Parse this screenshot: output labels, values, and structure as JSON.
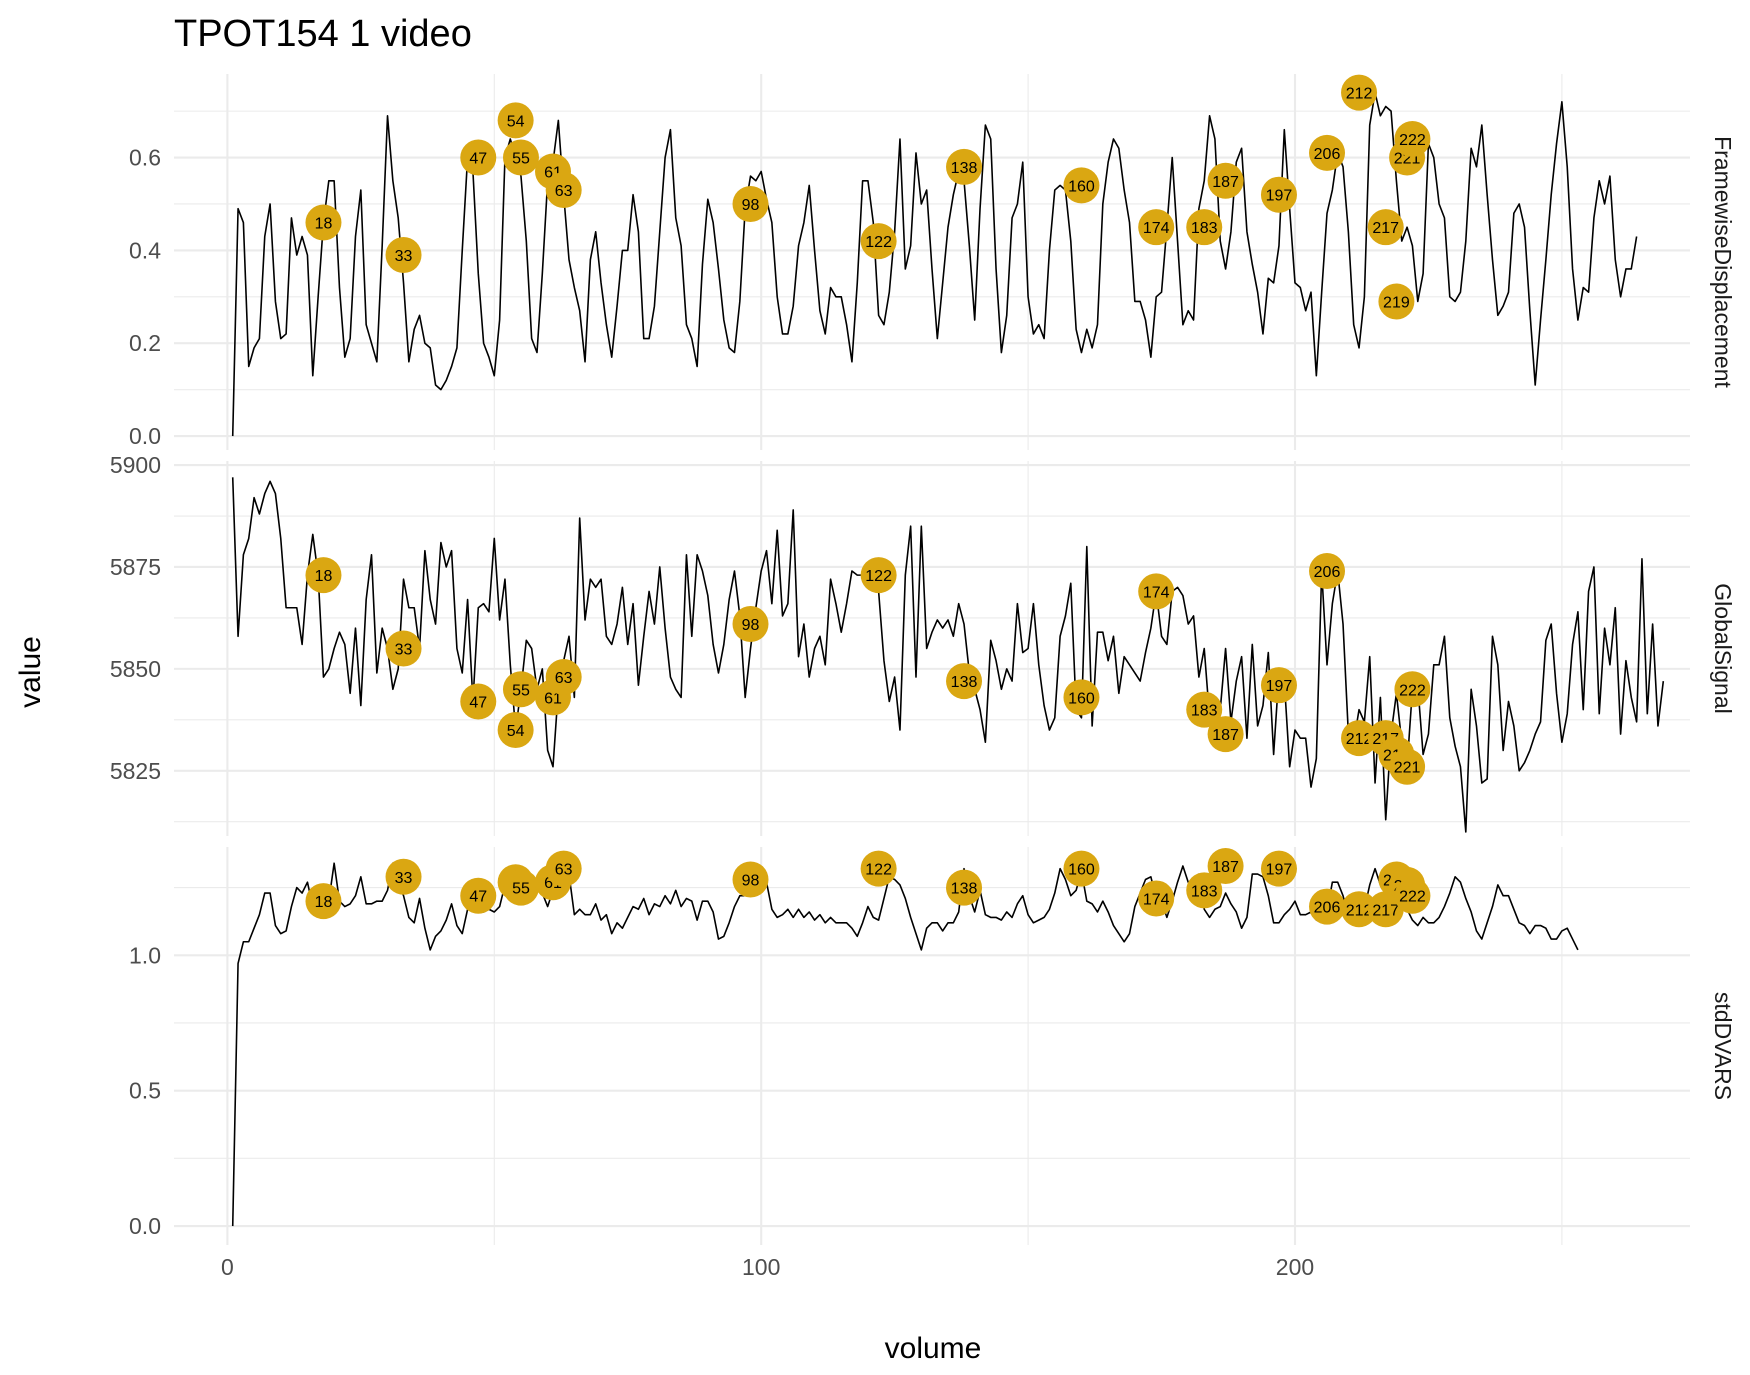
{
  "chart_data": {
    "type": "line",
    "title": "TPOT154  1  video",
    "xlabel": "volume",
    "ylabel": "value",
    "xlim": [
      -10,
      274
    ],
    "x_ticks": [
      0,
      100,
      200
    ],
    "highlight_color": "#DAA712",
    "line_color": "#000000",
    "facets": [
      {
        "name": "FramewiseDisplacement",
        "ylim": [
          -0.03,
          0.78
        ],
        "y_ticks": [
          0.0,
          0.2,
          0.4,
          0.6
        ],
        "y_tick_labels": [
          "0.0",
          "0.2",
          "0.4",
          "0.6"
        ],
        "values": [
          0.0,
          0.49,
          0.46,
          0.15,
          0.19,
          0.21,
          0.43,
          0.5,
          0.29,
          0.21,
          0.22,
          0.47,
          0.39,
          0.43,
          0.39,
          0.13,
          0.3,
          0.46,
          0.55,
          0.55,
          0.32,
          0.17,
          0.21,
          0.43,
          0.53,
          0.24,
          0.2,
          0.16,
          0.41,
          0.69,
          0.55,
          0.47,
          0.33,
          0.16,
          0.23,
          0.26,
          0.2,
          0.19,
          0.11,
          0.1,
          0.12,
          0.15,
          0.19,
          0.4,
          0.6,
          0.57,
          0.35,
          0.2,
          0.17,
          0.13,
          0.25,
          0.6,
          0.64,
          0.6,
          0.56,
          0.42,
          0.21,
          0.18,
          0.35,
          0.55,
          0.59,
          0.68,
          0.52,
          0.38,
          0.32,
          0.27,
          0.16,
          0.38,
          0.44,
          0.33,
          0.24,
          0.17,
          0.28,
          0.4,
          0.4,
          0.52,
          0.44,
          0.21,
          0.21,
          0.28,
          0.44,
          0.6,
          0.66,
          0.47,
          0.41,
          0.24,
          0.21,
          0.15,
          0.37,
          0.51,
          0.46,
          0.36,
          0.25,
          0.19,
          0.18,
          0.29,
          0.49,
          0.56,
          0.55,
          0.57,
          0.51,
          0.46,
          0.3,
          0.22,
          0.22,
          0.28,
          0.41,
          0.46,
          0.54,
          0.4,
          0.27,
          0.22,
          0.32,
          0.3,
          0.3,
          0.24,
          0.16,
          0.33,
          0.55,
          0.55,
          0.46,
          0.26,
          0.24,
          0.31,
          0.44,
          0.64,
          0.36,
          0.41,
          0.61,
          0.5,
          0.53,
          0.36,
          0.21,
          0.33,
          0.45,
          0.52,
          0.57,
          0.55,
          0.41,
          0.25,
          0.49,
          0.67,
          0.64,
          0.36,
          0.18,
          0.26,
          0.47,
          0.5,
          0.59,
          0.3,
          0.22,
          0.24,
          0.21,
          0.4,
          0.53,
          0.54,
          0.53,
          0.42,
          0.23,
          0.18,
          0.23,
          0.19,
          0.24,
          0.5,
          0.59,
          0.64,
          0.62,
          0.53,
          0.46,
          0.29,
          0.29,
          0.25,
          0.17,
          0.3,
          0.31,
          0.45,
          0.6,
          0.42,
          0.24,
          0.27,
          0.25,
          0.49,
          0.55,
          0.69,
          0.64,
          0.42,
          0.36,
          0.44,
          0.59,
          0.62,
          0.44,
          0.37,
          0.31,
          0.22,
          0.34,
          0.33,
          0.41,
          0.66,
          0.49,
          0.33,
          0.32,
          0.27,
          0.31,
          0.13,
          0.31,
          0.48,
          0.53,
          0.61,
          0.58,
          0.44,
          0.24,
          0.19,
          0.3,
          0.67,
          0.74,
          0.69,
          0.71,
          0.7,
          0.55,
          0.42,
          0.45,
          0.41,
          0.29,
          0.35,
          0.63,
          0.6,
          0.5,
          0.47,
          0.3,
          0.29,
          0.31,
          0.42,
          0.62,
          0.58,
          0.67,
          0.52,
          0.38,
          0.26,
          0.28,
          0.31,
          0.48,
          0.5,
          0.45,
          0.27,
          0.11,
          0.25,
          0.38,
          0.52,
          0.63,
          0.72,
          0.58,
          0.36,
          0.25,
          0.32,
          0.31,
          0.47,
          0.55,
          0.5,
          0.56,
          0.38,
          0.3,
          0.36,
          0.36,
          0.43
        ],
        "highlights": [
          {
            "label": "18",
            "x": 18,
            "y": 0.46
          },
          {
            "label": "33",
            "x": 33,
            "y": 0.39
          },
          {
            "label": "47",
            "x": 47,
            "y": 0.6
          },
          {
            "label": "54",
            "x": 54,
            "y": 0.68
          },
          {
            "label": "55",
            "x": 55,
            "y": 0.6
          },
          {
            "label": "61",
            "x": 61,
            "y": 0.57
          },
          {
            "label": "63",
            "x": 63,
            "y": 0.53
          },
          {
            "label": "98",
            "x": 98,
            "y": 0.5
          },
          {
            "label": "122",
            "x": 122,
            "y": 0.42
          },
          {
            "label": "138",
            "x": 138,
            "y": 0.58
          },
          {
            "label": "160",
            "x": 160,
            "y": 0.54
          },
          {
            "label": "174",
            "x": 174,
            "y": 0.45
          },
          {
            "label": "183",
            "x": 183,
            "y": 0.45
          },
          {
            "label": "187",
            "x": 187,
            "y": 0.55
          },
          {
            "label": "197",
            "x": 197,
            "y": 0.52
          },
          {
            "label": "206",
            "x": 206,
            "y": 0.61
          },
          {
            "label": "212",
            "x": 212,
            "y": 0.74
          },
          {
            "label": "217",
            "x": 217,
            "y": 0.45
          },
          {
            "label": "219",
            "x": 219,
            "y": 0.29
          },
          {
            "label": "221",
            "x": 221,
            "y": 0.6
          },
          {
            "label": "222",
            "x": 222,
            "y": 0.64
          }
        ]
      },
      {
        "name": "GlobalSignal",
        "ylim": [
          5809,
          5901
        ],
        "y_ticks": [
          5825,
          5850,
          5875,
          5900
        ],
        "y_tick_labels": [
          "5825",
          "5850",
          "5875",
          "5900"
        ],
        "values": [
          5897,
          5858,
          5878,
          5882,
          5892,
          5888,
          5893,
          5896,
          5893,
          5882,
          5865,
          5865,
          5865,
          5856,
          5873,
          5883,
          5873,
          5848,
          5850,
          5855,
          5859,
          5856,
          5844,
          5860,
          5841,
          5867,
          5878,
          5849,
          5860,
          5855,
          5845,
          5850,
          5872,
          5865,
          5865,
          5855,
          5879,
          5867,
          5861,
          5881,
          5875,
          5879,
          5855,
          5849,
          5867,
          5842,
          5865,
          5866,
          5864,
          5882,
          5862,
          5872,
          5851,
          5835,
          5845,
          5857,
          5855,
          5845,
          5850,
          5830,
          5826,
          5845,
          5852,
          5858,
          5843,
          5887,
          5862,
          5872,
          5870,
          5872,
          5858,
          5856,
          5861,
          5870,
          5856,
          5866,
          5846,
          5858,
          5869,
          5861,
          5875,
          5860,
          5848,
          5845,
          5843,
          5878,
          5858,
          5878,
          5874,
          5868,
          5856,
          5849,
          5856,
          5867,
          5874,
          5863,
          5843,
          5855,
          5865,
          5874,
          5879,
          5866,
          5884,
          5863,
          5866,
          5889,
          5853,
          5861,
          5848,
          5855,
          5858,
          5851,
          5872,
          5866,
          5859,
          5866,
          5874,
          5873,
          5873,
          5874,
          5873,
          5869,
          5852,
          5842,
          5848,
          5835,
          5873,
          5885,
          5848,
          5885,
          5855,
          5859,
          5862,
          5860,
          5862,
          5858,
          5866,
          5861,
          5849,
          5845,
          5840,
          5832,
          5857,
          5852,
          5845,
          5850,
          5847,
          5866,
          5854,
          5855,
          5866,
          5851,
          5841,
          5835,
          5838,
          5858,
          5863,
          5871,
          5840,
          5838,
          5880,
          5836,
          5859,
          5859,
          5852,
          5858,
          5844,
          5853,
          5851,
          5849,
          5847,
          5854,
          5860,
          5869,
          5858,
          5856,
          5869,
          5870,
          5868,
          5861,
          5863,
          5848,
          5855,
          5838,
          5840,
          5840,
          5855,
          5837,
          5847,
          5853,
          5833,
          5856,
          5836,
          5841,
          5854,
          5829,
          5849,
          5847,
          5826,
          5835,
          5833,
          5833,
          5821,
          5828,
          5874,
          5851,
          5866,
          5874,
          5861,
          5834,
          5832,
          5840,
          5837,
          5853,
          5822,
          5843,
          5813,
          5834,
          5844,
          5832,
          5826,
          5845,
          5846,
          5829,
          5834,
          5851,
          5851,
          5858,
          5838,
          5831,
          5826,
          5810,
          5845,
          5836,
          5822,
          5823,
          5858,
          5851,
          5830,
          5842,
          5836,
          5825,
          5827,
          5830,
          5834,
          5837,
          5857,
          5861,
          5844,
          5832,
          5839,
          5856,
          5864,
          5840,
          5869,
          5875,
          5839,
          5860,
          5851,
          5865,
          5834,
          5852,
          5843,
          5837,
          5877,
          5839,
          5861,
          5836,
          5847
        ],
        "highlights": [
          {
            "label": "18",
            "x": 18,
            "y": 5873
          },
          {
            "label": "33",
            "x": 33,
            "y": 5855
          },
          {
            "label": "47",
            "x": 47,
            "y": 5842
          },
          {
            "label": "54",
            "x": 54,
            "y": 5835
          },
          {
            "label": "55",
            "x": 55,
            "y": 5845
          },
          {
            "label": "61",
            "x": 61,
            "y": 5843
          },
          {
            "label": "63",
            "x": 63,
            "y": 5848
          },
          {
            "label": "98",
            "x": 98,
            "y": 5861
          },
          {
            "label": "122",
            "x": 122,
            "y": 5873
          },
          {
            "label": "138",
            "x": 138,
            "y": 5847
          },
          {
            "label": "160",
            "x": 160,
            "y": 5843
          },
          {
            "label": "174",
            "x": 174,
            "y": 5869
          },
          {
            "label": "183",
            "x": 183,
            "y": 5840
          },
          {
            "label": "187",
            "x": 187,
            "y": 5834
          },
          {
            "label": "197",
            "x": 197,
            "y": 5846
          },
          {
            "label": "206",
            "x": 206,
            "y": 5874
          },
          {
            "label": "212",
            "x": 212,
            "y": 5833
          },
          {
            "label": "217",
            "x": 217,
            "y": 5833
          },
          {
            "label": "219",
            "x": 219,
            "y": 5829
          },
          {
            "label": "221",
            "x": 221,
            "y": 5826
          },
          {
            "label": "222",
            "x": 222,
            "y": 5845
          }
        ]
      },
      {
        "name": "stdDVARS",
        "ylim": [
          -0.07,
          1.4
        ],
        "y_ticks": [
          0.0,
          0.5,
          1.0
        ],
        "y_tick_labels": [
          "0.0",
          "0.5",
          "1.0"
        ],
        "values": [
          0.0,
          0.97,
          1.05,
          1.05,
          1.1,
          1.15,
          1.23,
          1.23,
          1.11,
          1.08,
          1.09,
          1.18,
          1.25,
          1.23,
          1.27,
          1.18,
          1.2,
          1.23,
          1.2,
          1.34,
          1.2,
          1.18,
          1.19,
          1.22,
          1.29,
          1.19,
          1.19,
          1.2,
          1.2,
          1.24,
          1.34,
          1.27,
          1.22,
          1.14,
          1.12,
          1.21,
          1.1,
          1.02,
          1.07,
          1.09,
          1.13,
          1.19,
          1.11,
          1.08,
          1.17,
          1.22,
          1.22,
          1.16,
          1.17,
          1.16,
          1.18,
          1.26,
          1.27,
          1.21,
          1.26,
          1.25,
          1.24,
          1.26,
          1.23,
          1.18,
          1.24,
          1.26,
          1.3,
          1.3,
          1.15,
          1.17,
          1.15,
          1.15,
          1.19,
          1.13,
          1.15,
          1.08,
          1.12,
          1.1,
          1.14,
          1.18,
          1.17,
          1.21,
          1.15,
          1.19,
          1.18,
          1.22,
          1.19,
          1.24,
          1.18,
          1.21,
          1.2,
          1.13,
          1.2,
          1.2,
          1.16,
          1.06,
          1.07,
          1.12,
          1.18,
          1.22,
          1.22,
          1.27,
          1.23,
          1.32,
          1.27,
          1.17,
          1.14,
          1.15,
          1.17,
          1.14,
          1.17,
          1.14,
          1.16,
          1.13,
          1.15,
          1.12,
          1.14,
          1.12,
          1.12,
          1.12,
          1.1,
          1.07,
          1.12,
          1.18,
          1.14,
          1.13,
          1.21,
          1.29,
          1.28,
          1.26,
          1.21,
          1.14,
          1.08,
          1.02,
          1.1,
          1.12,
          1.12,
          1.09,
          1.12,
          1.12,
          1.16,
          1.32,
          1.22,
          1.16,
          1.24,
          1.15,
          1.14,
          1.14,
          1.13,
          1.16,
          1.14,
          1.19,
          1.22,
          1.15,
          1.12,
          1.13,
          1.14,
          1.17,
          1.23,
          1.32,
          1.28,
          1.22,
          1.24,
          1.31,
          1.2,
          1.19,
          1.16,
          1.2,
          1.16,
          1.11,
          1.08,
          1.05,
          1.08,
          1.18,
          1.23,
          1.28,
          1.29,
          1.21,
          1.2,
          1.14,
          1.2,
          1.27,
          1.33,
          1.27,
          1.26,
          1.3,
          1.17,
          1.14,
          1.17,
          1.18,
          1.23,
          1.19,
          1.16,
          1.1,
          1.14,
          1.3,
          1.3,
          1.29,
          1.22,
          1.12,
          1.12,
          1.15,
          1.17,
          1.2,
          1.15,
          1.15,
          1.16,
          1.13,
          1.13,
          1.16,
          1.27,
          1.27,
          1.22,
          1.14,
          1.12,
          1.18,
          1.17,
          1.26,
          1.32,
          1.26,
          1.25,
          1.28,
          1.24,
          1.19,
          1.17,
          1.13,
          1.11,
          1.14,
          1.12,
          1.12,
          1.14,
          1.18,
          1.23,
          1.29,
          1.27,
          1.21,
          1.16,
          1.09,
          1.06,
          1.12,
          1.18,
          1.26,
          1.22,
          1.22,
          1.17,
          1.12,
          1.11,
          1.08,
          1.11,
          1.11,
          1.1,
          1.06,
          1.06,
          1.09,
          1.1,
          1.06,
          1.02
        ],
        "highlights": [
          {
            "label": "18",
            "x": 18,
            "y": 1.2
          },
          {
            "label": "33",
            "x": 33,
            "y": 1.29
          },
          {
            "label": "47",
            "x": 47,
            "y": 1.22
          },
          {
            "label": "54",
            "x": 54,
            "y": 1.27
          },
          {
            "label": "55",
            "x": 55,
            "y": 1.25
          },
          {
            "label": "61",
            "x": 61,
            "y": 1.27
          },
          {
            "label": "63",
            "x": 63,
            "y": 1.32
          },
          {
            "label": "98",
            "x": 98,
            "y": 1.28
          },
          {
            "label": "122",
            "x": 122,
            "y": 1.32
          },
          {
            "label": "138",
            "x": 138,
            "y": 1.25
          },
          {
            "label": "160",
            "x": 160,
            "y": 1.32
          },
          {
            "label": "174",
            "x": 174,
            "y": 1.21
          },
          {
            "label": "183",
            "x": 183,
            "y": 1.24
          },
          {
            "label": "187",
            "x": 187,
            "y": 1.33
          },
          {
            "label": "197",
            "x": 197,
            "y": 1.32
          },
          {
            "label": "206",
            "x": 206,
            "y": 1.18
          },
          {
            "label": "212",
            "x": 212,
            "y": 1.17
          },
          {
            "label": "217",
            "x": 217,
            "y": 1.17
          },
          {
            "label": "219",
            "x": 219,
            "y": 1.28
          },
          {
            "label": "221",
            "x": 221,
            "y": 1.26
          },
          {
            "label": "222",
            "x": 222,
            "y": 1.22
          }
        ]
      }
    ]
  }
}
